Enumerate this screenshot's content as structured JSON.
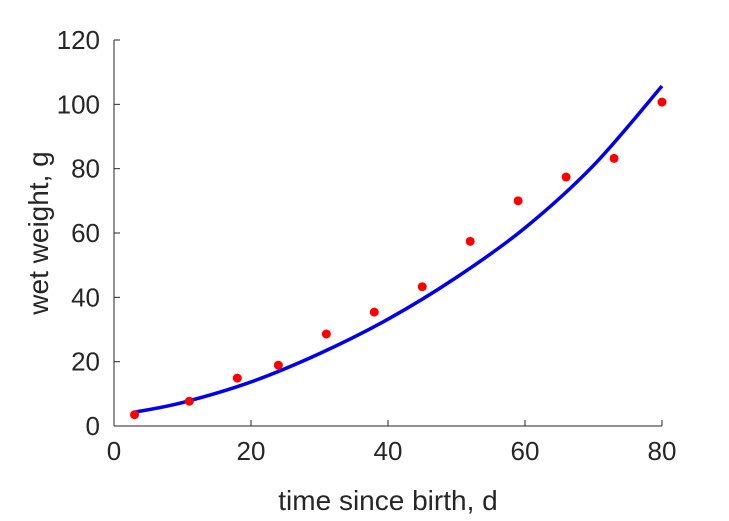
{
  "chart_data": {
    "type": "scatter",
    "title": "",
    "xlabel": "time since birth, d",
    "ylabel": "wet weight, g",
    "xlim": [
      0,
      80
    ],
    "ylim": [
      0,
      120
    ],
    "xticks": [
      0,
      20,
      40,
      60,
      80
    ],
    "yticks": [
      0,
      20,
      40,
      60,
      80,
      100,
      120
    ],
    "grid": false,
    "series": [
      {
        "kind": "points",
        "color": "#ff0000",
        "x": [
          3,
          11,
          18,
          24,
          31,
          38,
          45,
          52,
          59,
          66,
          73,
          80
        ],
        "y": [
          3.5,
          7.7,
          14.9,
          18.9,
          28.6,
          35.4,
          43.3,
          57.4,
          70.0,
          77.4,
          83.2,
          100.7
        ]
      },
      {
        "kind": "line",
        "color": "#0000ee",
        "x": [
          3,
          10,
          20,
          30,
          40,
          50,
          60,
          70,
          80
        ],
        "y": [
          4.3,
          7.3,
          13.7,
          22.5,
          33.2,
          46.2,
          61.6,
          81.0,
          105.7
        ]
      }
    ]
  }
}
